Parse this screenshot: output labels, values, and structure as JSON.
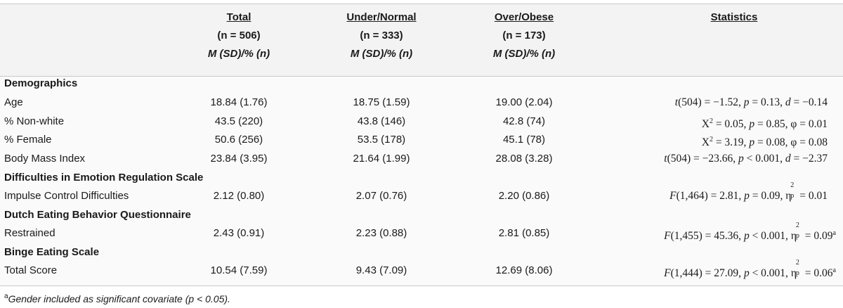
{
  "header": {
    "columns": [
      {
        "title": "Total",
        "n": "(n = 506)",
        "measure": "M (SD)/% (n)"
      },
      {
        "title": "Under/Normal",
        "n": "(n = 333)",
        "measure": "M (SD)/% (n)"
      },
      {
        "title": "Over/Obese",
        "n": "(n = 173)",
        "measure": "M (SD)/% (n)"
      }
    ],
    "statistics": "Statistics"
  },
  "sections": [
    {
      "title": "Demographics"
    },
    {
      "title": "Difficulties in Emotion Regulation Scale"
    },
    {
      "title": "Dutch Eating Behavior Questionnaire"
    },
    {
      "title": "Binge Eating Scale"
    }
  ],
  "rows": [
    {
      "label": "Age",
      "total": "18.84 (1.76)",
      "under": "18.75 (1.59)",
      "over": "19.00 (2.04)"
    },
    {
      "label": "% Non-white",
      "total": "43.5 (220)",
      "under": "43.8 (146)",
      "over": "42.8 (74)"
    },
    {
      "label": "% Female",
      "total": "50.6 (256)",
      "under": "53.5 (178)",
      "over": "45.1 (78)"
    },
    {
      "label": "Body Mass Index",
      "total": "23.84 (3.95)",
      "under": "21.64 (1.99)",
      "over": "28.08 (3.28)"
    },
    {
      "label": "Impulse Control Difficulties",
      "total": "2.12 (0.80)",
      "under": "2.07 (0.76)",
      "over": "2.20 (0.86)"
    },
    {
      "label": "Restrained",
      "total": "2.43 (0.91)",
      "under": "2.23 (0.88)",
      "over": "2.81 (0.85)"
    },
    {
      "label": "Total Score",
      "total": "10.54 (7.59)",
      "under": "9.43 (7.09)",
      "over": "12.69 (8.06)"
    }
  ],
  "stats": {
    "age": {
      "a": "t",
      "b": "(504) = −1.52, ",
      "c": "p",
      "d": " = 0.13, ",
      "e": "d",
      "f": " = −0.14"
    },
    "nonwhite": {
      "a": "X",
      "sup": "2",
      "b": " = 0.05, ",
      "c": "p",
      "d": " = 0.85, φ = 0.01"
    },
    "female": {
      "a": "X",
      "sup": "2",
      "b": " = 3.19, ",
      "c": "p",
      "d": " = 0.08, φ = 0.08"
    },
    "bmi": {
      "a": "t",
      "b": "(504) = −23.66, ",
      "c": "p",
      "d": " < 0.001, ",
      "e": "d",
      "f": " = −2.37"
    },
    "impulse": {
      "a": "F",
      "b": "(1,464) = 2.81, ",
      "c": "p",
      "d": " = 0.09, ",
      "eta": "η",
      "sq": "2",
      "sb": "p",
      "f": " = 0.01",
      "note": ""
    },
    "restrained": {
      "a": "F",
      "b": "(1,455) = 45.36, ",
      "c": "p",
      "d": " < 0.001, ",
      "eta": "η",
      "sq": "2",
      "sb": "p",
      "f": " = 0.09",
      "note": "a"
    },
    "binge": {
      "a": "F",
      "b": "(1,444) = 27.09, ",
      "c": "p",
      "d": " < 0.001, ",
      "eta": "η",
      "sq": "2",
      "sb": "p",
      "f": " = 0.06",
      "note": "a"
    }
  },
  "footnote": {
    "mark": "a",
    "text": "Gender included as significant covariate (p < 0.05)."
  }
}
